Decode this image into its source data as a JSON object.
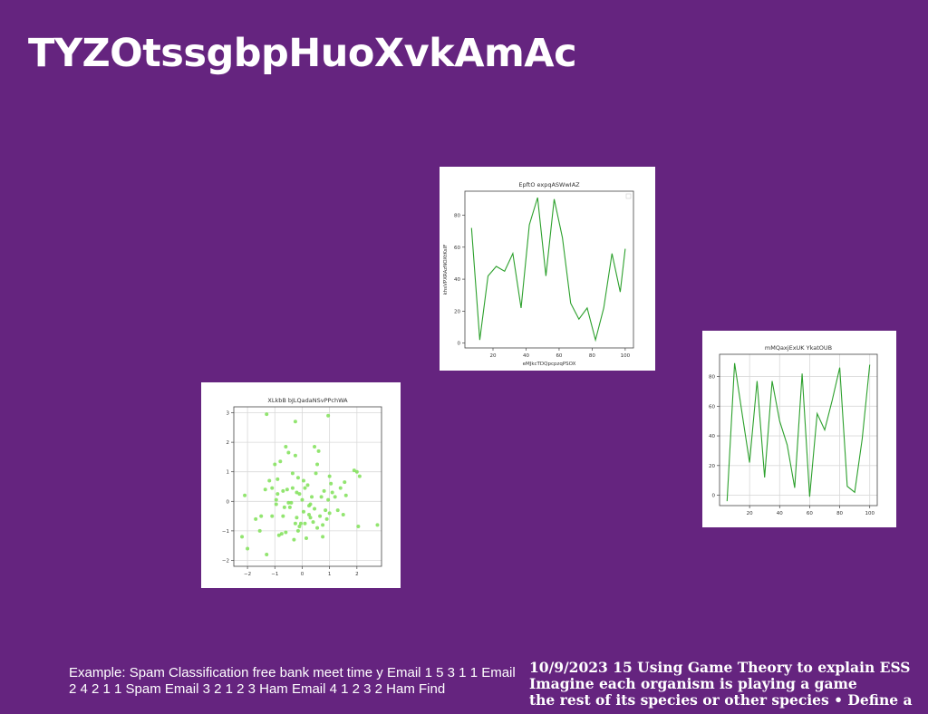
{
  "slide": {
    "title": "TYZOtssgbpHuoXvkAmAc",
    "caption_left": "Example: Spam Classification free bank meet time y Email 1 5 3 1 1 Email 2 4 2 1 1 Spam Email 3 2 1 2 3 Ham Email 4 1 2 3 2 Ham Find",
    "caption_right": [
      "10/9/2023 15 Using Game Theory to explain ESS",
      "Imagine each organism is playing a game",
      "the rest of its species or other species • Define a"
    ]
  },
  "colors": {
    "background": "#65247f",
    "line_series": "#2ca02c",
    "scatter_points": "#7fe057"
  },
  "chart_data": [
    {
      "type": "line",
      "title": "EpftO expqASWwIAZ",
      "xlabel": "eMJkcTDQpcpzqPSOX",
      "ylabel": "khsVPXRAzNOXtKsIF",
      "x": [
        7,
        12,
        17,
        22,
        27,
        32,
        37,
        42,
        47,
        52,
        57,
        62,
        67,
        72,
        77,
        82,
        87,
        92,
        97,
        100
      ],
      "values": [
        72,
        2,
        42,
        48,
        45,
        56,
        22,
        74,
        91,
        42,
        90,
        66,
        25,
        15,
        22,
        2,
        22,
        56,
        32,
        59
      ],
      "xlim": [
        3,
        105
      ],
      "ylim": [
        -3,
        95
      ],
      "xticks": [
        20,
        40,
        60,
        80,
        100
      ],
      "yticks": [
        0,
        20,
        40,
        60,
        80
      ],
      "grid": false,
      "legend": "top-right"
    },
    {
      "type": "line",
      "title": "mMQaxjExUK YkatOUB",
      "x": [
        5,
        10,
        15,
        20,
        25,
        30,
        35,
        40,
        45,
        50,
        55,
        60,
        65,
        70,
        75,
        80,
        85,
        90,
        95,
        100
      ],
      "values": [
        -4,
        89,
        55,
        22,
        77,
        12,
        77,
        50,
        34,
        5,
        82,
        -1,
        55,
        44,
        64,
        86,
        6,
        2,
        38,
        88
      ],
      "xlim": [
        0,
        105
      ],
      "ylim": [
        -7,
        95
      ],
      "xticks": [
        20,
        40,
        60,
        80,
        100
      ],
      "yticks": [
        0,
        20,
        40,
        60,
        80
      ],
      "grid": true
    },
    {
      "type": "scatter",
      "title": "XLkbB bJLQadaNSvPPchWA",
      "xlim": [
        -2.5,
        2.9
      ],
      "ylim": [
        -2.2,
        3.2
      ],
      "xticks": [
        -2,
        -1,
        0,
        1,
        2
      ],
      "yticks": [
        -2,
        -1,
        0,
        1,
        2,
        3
      ],
      "grid": true,
      "points": [
        [
          -1.3,
          2.95
        ],
        [
          -0.25,
          2.7
        ],
        [
          0.95,
          2.9
        ],
        [
          -2.1,
          0.2
        ],
        [
          -2.2,
          -1.2
        ],
        [
          -2.0,
          -1.6
        ],
        [
          -1.7,
          -0.6
        ],
        [
          -1.5,
          -0.5
        ],
        [
          -1.3,
          -1.8
        ],
        [
          -1.35,
          0.4
        ],
        [
          -1.2,
          0.7
        ],
        [
          -1.1,
          -0.5
        ],
        [
          -1.0,
          1.25
        ],
        [
          -0.9,
          0.75
        ],
        [
          -0.9,
          0.25
        ],
        [
          -0.8,
          1.35
        ],
        [
          -0.75,
          -1.1
        ],
        [
          -0.7,
          -0.5
        ],
        [
          -0.6,
          1.85
        ],
        [
          -0.55,
          0.4
        ],
        [
          -0.5,
          1.65
        ],
        [
          -0.45,
          -0.2
        ],
        [
          -0.4,
          -0.05
        ],
        [
          -0.35,
          0.95
        ],
        [
          -0.3,
          -1.3
        ],
        [
          -0.25,
          1.55
        ],
        [
          -0.2,
          0.3
        ],
        [
          -0.15,
          0.8
        ],
        [
          -0.1,
          0.25
        ],
        [
          0.0,
          0.05
        ],
        [
          0.05,
          -0.35
        ],
        [
          0.1,
          0.45
        ],
        [
          0.15,
          -1.25
        ],
        [
          0.2,
          0.55
        ],
        [
          0.25,
          -0.45
        ],
        [
          0.3,
          -0.1
        ],
        [
          0.35,
          0.15
        ],
        [
          0.4,
          -0.7
        ],
        [
          0.45,
          1.85
        ],
        [
          0.5,
          0.95
        ],
        [
          0.55,
          1.25
        ],
        [
          0.6,
          1.7
        ],
        [
          0.65,
          -0.5
        ],
        [
          0.7,
          0.15
        ],
        [
          0.75,
          -0.8
        ],
        [
          0.8,
          0.35
        ],
        [
          0.85,
          -0.3
        ],
        [
          0.9,
          -0.6
        ],
        [
          0.95,
          0.05
        ],
        [
          1.0,
          0.85
        ],
        [
          1.05,
          0.6
        ],
        [
          1.1,
          0.3
        ],
        [
          1.2,
          0.15
        ],
        [
          1.3,
          -0.3
        ],
        [
          1.4,
          0.45
        ],
        [
          1.5,
          -0.45
        ],
        [
          1.55,
          0.65
        ],
        [
          1.6,
          0.2
        ],
        [
          1.9,
          1.05
        ],
        [
          2.0,
          1.0
        ],
        [
          2.05,
          -0.85
        ],
        [
          2.1,
          0.85
        ],
        [
          2.75,
          -0.8
        ],
        [
          -1.55,
          -1.0
        ],
        [
          -0.95,
          -0.1
        ],
        [
          -0.85,
          -1.15
        ],
        [
          -0.65,
          -0.2
        ],
        [
          -0.5,
          -0.05
        ],
        [
          -0.35,
          0.45
        ],
        [
          -0.05,
          -0.75
        ],
        [
          0.1,
          -0.75
        ],
        [
          0.25,
          -0.15
        ],
        [
          -0.2,
          -0.55
        ],
        [
          0.55,
          -0.9
        ],
        [
          0.75,
          -1.2
        ],
        [
          -1.1,
          0.45
        ],
        [
          -0.7,
          0.35
        ],
        [
          -0.15,
          -1.0
        ],
        [
          0.3,
          -0.55
        ],
        [
          1.0,
          -0.4
        ],
        [
          -0.25,
          -0.75
        ],
        [
          -0.95,
          0.05
        ],
        [
          0.45,
          -0.25
        ],
        [
          -0.6,
          -1.05
        ],
        [
          0.05,
          0.7
        ],
        [
          -0.1,
          -0.85
        ]
      ]
    }
  ]
}
